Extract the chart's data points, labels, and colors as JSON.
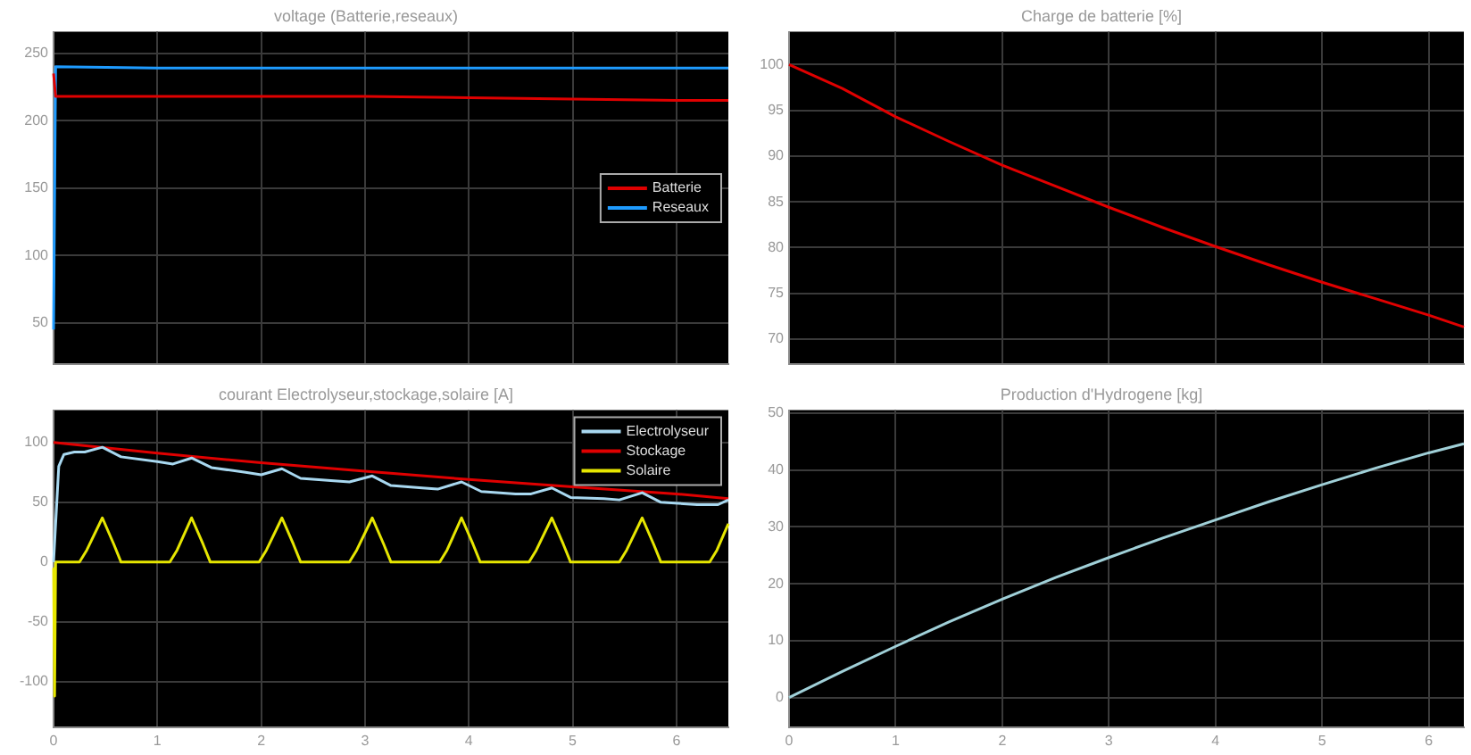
{
  "chart_data": [
    {
      "type": "line",
      "title": "voltage (Batterie,reseaux)",
      "xlim": [
        0,
        6.5
      ],
      "xticks": [
        0,
        1,
        2,
        3,
        4,
        5,
        6
      ],
      "ylim": [
        19,
        266
      ],
      "yticks": [
        50,
        100,
        150,
        200,
        250
      ],
      "tick_labels": "y",
      "grid": true,
      "legend": "right",
      "series": [
        {
          "name": "Batterie",
          "color": "#e00000",
          "x": [
            0,
            0.02,
            1,
            2,
            3,
            4,
            5,
            6,
            6.5
          ],
          "values": [
            235,
            218,
            218,
            218,
            218,
            217,
            216,
            215,
            215
          ]
        },
        {
          "name": "Reseaux",
          "color": "#1e9bff",
          "x": [
            0,
            0.02,
            1,
            2,
            3,
            4,
            5,
            6,
            6.5
          ],
          "values": [
            45,
            240,
            239,
            239,
            239,
            239,
            239,
            239,
            239
          ]
        }
      ]
    },
    {
      "type": "line",
      "title": "Charge de batterie [%]",
      "xlim": [
        0,
        6.33
      ],
      "xticks": [
        0,
        1,
        2,
        3,
        4,
        5,
        6
      ],
      "ylim": [
        67.2,
        103.6
      ],
      "yticks": [
        70,
        75,
        80,
        85,
        90,
        95,
        100
      ],
      "tick_labels": "y",
      "grid": true,
      "x": [
        0,
        0.5,
        1,
        1.5,
        2,
        2.5,
        3,
        3.5,
        4,
        4.5,
        5,
        5.5,
        6,
        6.33
      ],
      "series": [
        {
          "color": "#e00000",
          "values": [
            100,
            97.4,
            94.3,
            91.6,
            89,
            86.7,
            84.4,
            82.2,
            80.1,
            78.1,
            76.2,
            74.4,
            72.6,
            71.3
          ]
        }
      ]
    },
    {
      "type": "line",
      "title": "courant Electrolyseur,stockage,solaire [A]",
      "xlim": [
        0,
        6.5
      ],
      "xticks": [
        0,
        1,
        2,
        3,
        4,
        5,
        6
      ],
      "ylim": [
        -138,
        127
      ],
      "yticks": [
        -100,
        -50,
        0,
        50,
        100
      ],
      "grid": true,
      "legend": "top right",
      "series": [
        {
          "name": "Electrolyseur",
          "color": "#a8d8f0",
          "x": [
            0,
            0.05,
            0.1,
            0.2,
            0.3,
            0.47,
            0.65,
            1.0,
            1.15,
            1.33,
            1.52,
            1.85,
            2.0,
            2.2,
            2.38,
            2.7,
            2.85,
            3.07,
            3.25,
            3.55,
            3.7,
            3.93,
            4.12,
            4.45,
            4.6,
            4.8,
            4.98,
            5.3,
            5.45,
            5.67,
            5.85,
            6.2,
            6.4,
            6.5
          ],
          "values": [
            0,
            80,
            90,
            92,
            92,
            96,
            88,
            84,
            82,
            87,
            79,
            75,
            73,
            78,
            70,
            68,
            67,
            72,
            64,
            62,
            61,
            67,
            59,
            57,
            57,
            62,
            54,
            53,
            52,
            58,
            50,
            48,
            48,
            52
          ]
        },
        {
          "name": "Stockage",
          "color": "#e00000",
          "x": [
            0,
            1,
            2,
            3,
            4,
            5,
            6,
            6.5
          ],
          "values": [
            100,
            91,
            83,
            76,
            69,
            63,
            57,
            53
          ]
        },
        {
          "name": "Solaire",
          "color": "#e6e600",
          "x": [
            0,
            0.01,
            0.02,
            0.25,
            0.32,
            0.47,
            0.58,
            0.65,
            1.12,
            1.19,
            1.33,
            1.44,
            1.51,
            1.98,
            2.05,
            2.2,
            2.31,
            2.38,
            2.85,
            2.92,
            3.07,
            3.18,
            3.25,
            3.72,
            3.79,
            3.93,
            4.04,
            4.11,
            4.58,
            4.65,
            4.8,
            4.91,
            4.98,
            5.45,
            5.52,
            5.67,
            5.78,
            5.85,
            6.32,
            6.39,
            6.5
          ],
          "values": [
            -5,
            -112,
            0,
            0,
            10,
            37,
            15,
            0,
            0,
            10,
            37,
            15,
            0,
            0,
            10,
            37,
            15,
            0,
            0,
            10,
            37,
            15,
            0,
            0,
            10,
            37,
            15,
            0,
            0,
            10,
            37,
            15,
            0,
            0,
            10,
            37,
            15,
            0,
            0,
            10,
            32
          ]
        }
      ]
    },
    {
      "type": "line",
      "title": "Production d'Hydrogene [kg]",
      "xlim": [
        0,
        6.33
      ],
      "xticks": [
        0,
        1,
        2,
        3,
        4,
        5,
        6
      ],
      "ylim": [
        -5.2,
        50.5
      ],
      "yticks": [
        0,
        10,
        20,
        30,
        40,
        50
      ],
      "grid": true,
      "x": [
        0,
        0.5,
        1,
        1.5,
        2,
        2.5,
        3,
        3.5,
        4,
        4.5,
        5,
        5.5,
        6,
        6.33
      ],
      "series": [
        {
          "color": "#a0d0d8",
          "values": [
            0,
            4.6,
            9,
            13.3,
            17.3,
            21.1,
            24.6,
            28,
            31.2,
            34.4,
            37.4,
            40.3,
            43,
            44.6
          ]
        }
      ]
    }
  ]
}
